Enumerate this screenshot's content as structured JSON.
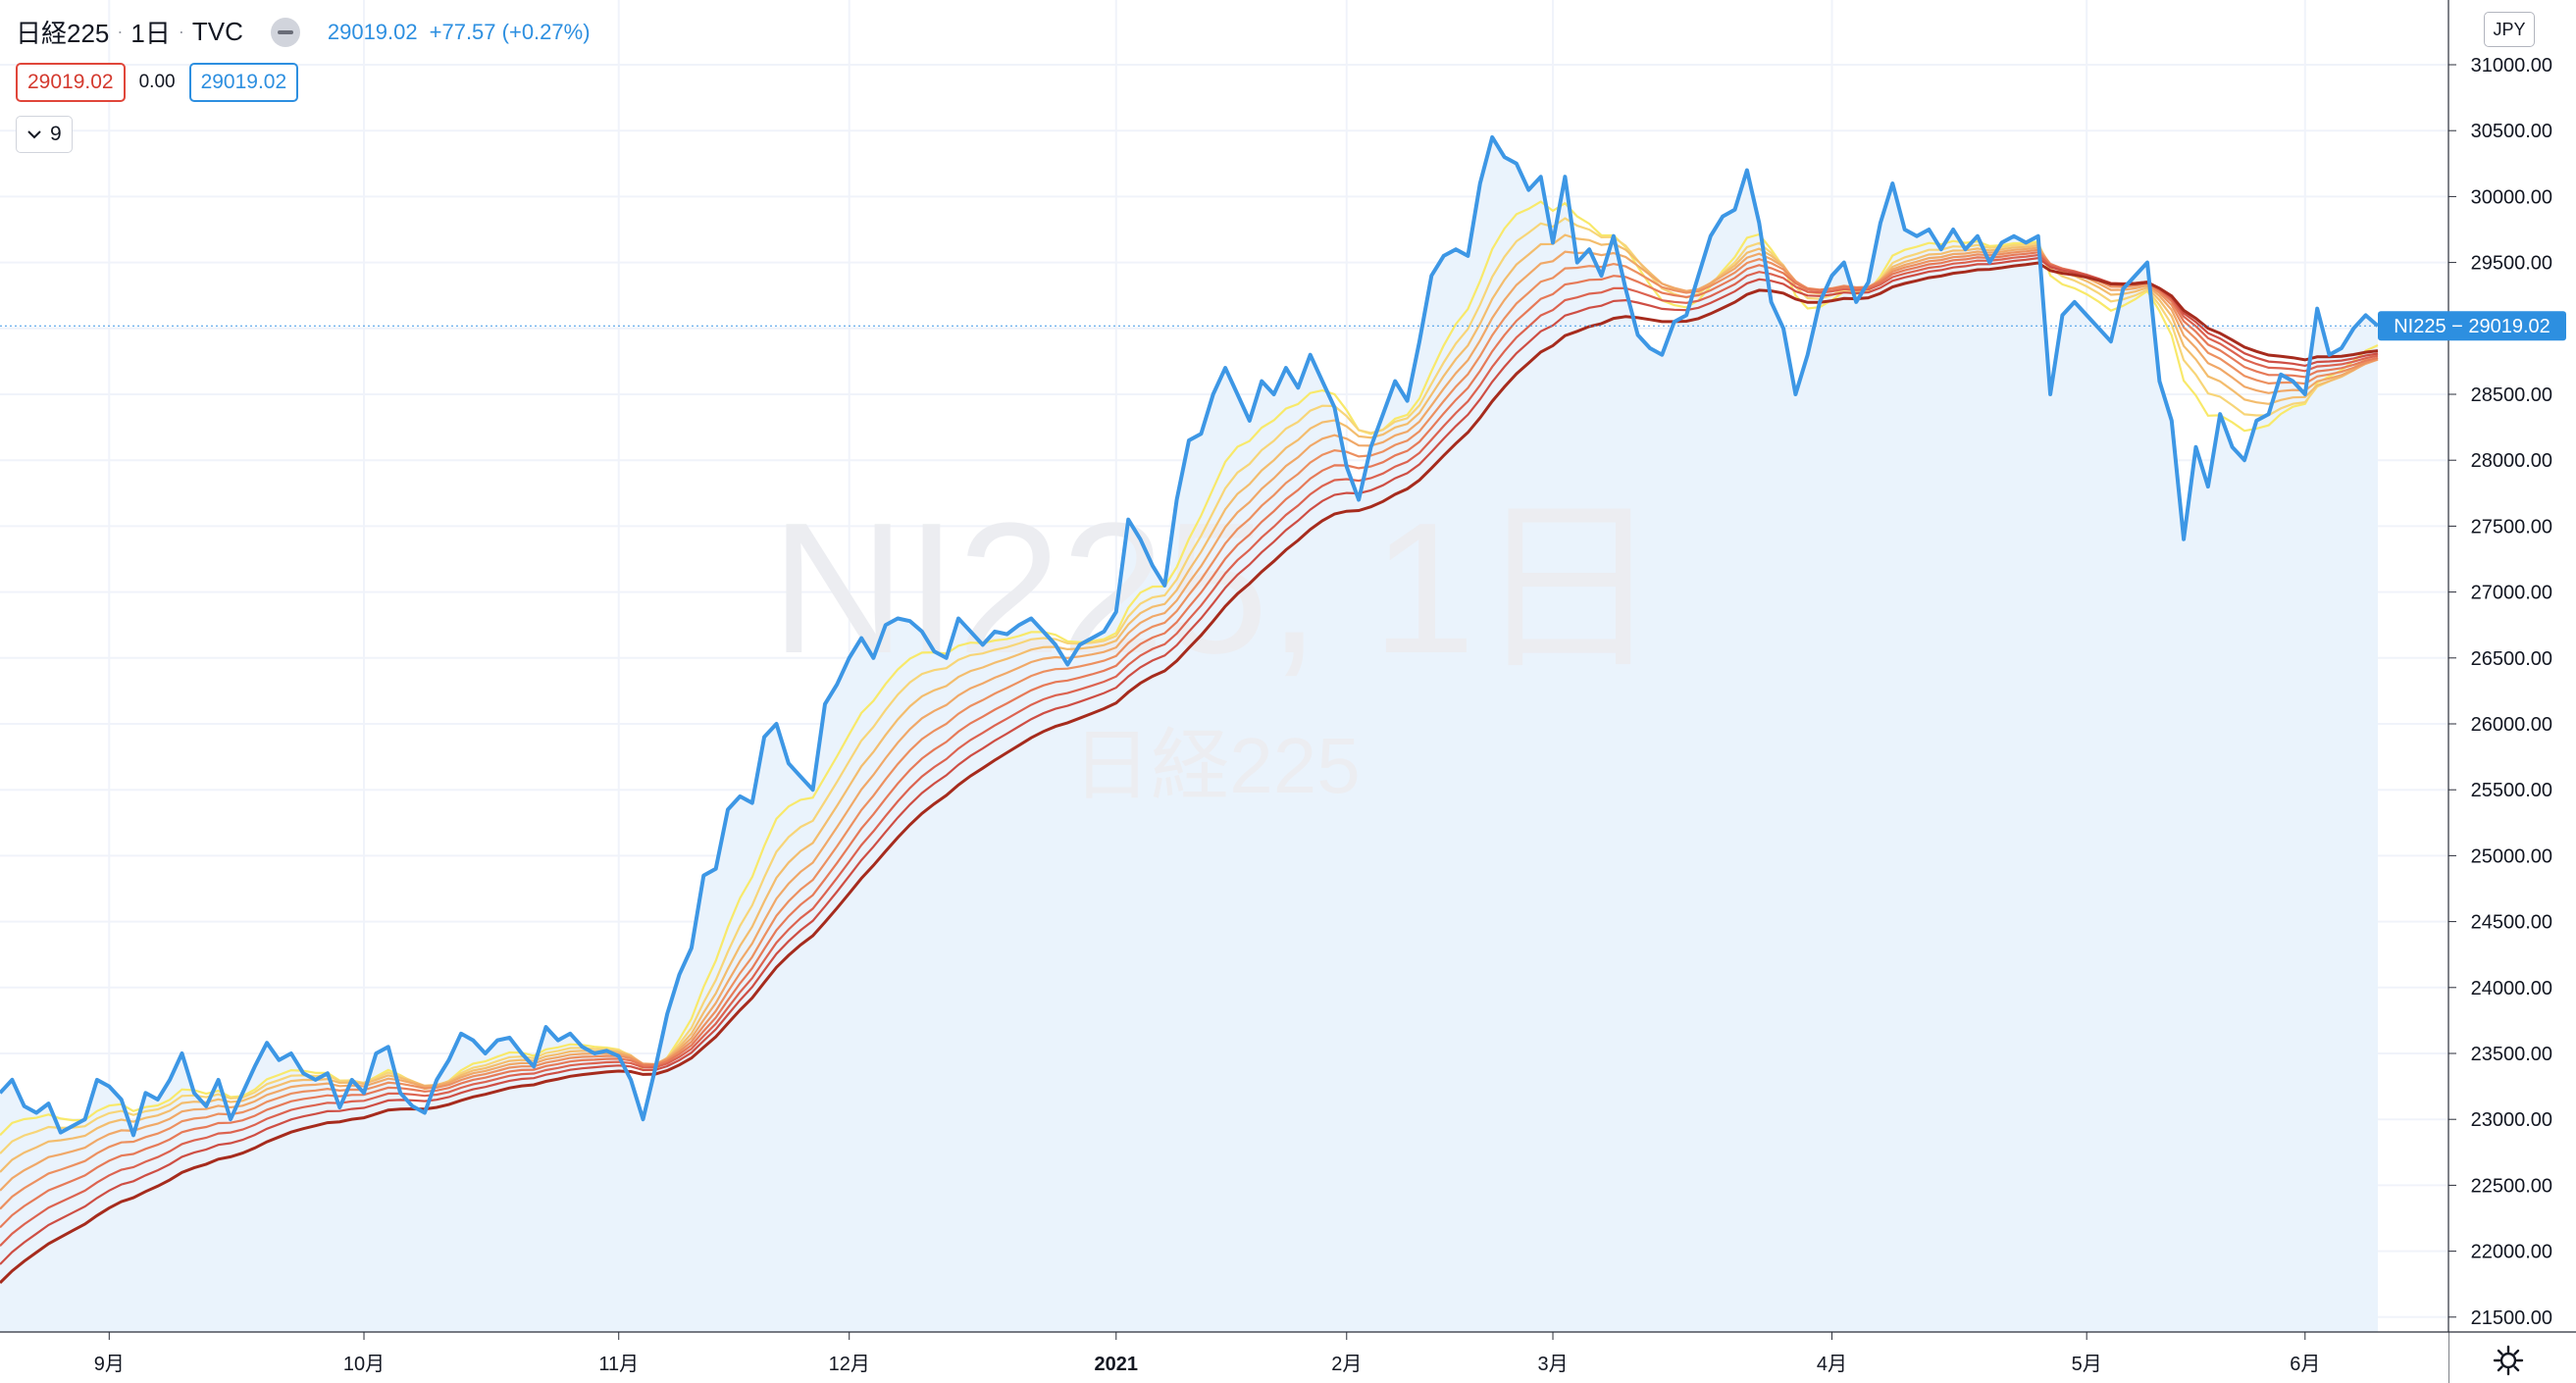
{
  "legend": {
    "symbol": "日経225",
    "interval": "1日",
    "exchange": "TVC",
    "last_price": "29019.02",
    "change": "+77.57 (+0.27%)",
    "ma_value_1": "29019.02",
    "ma_value_2": "0.00",
    "ma_value_3": "29019.02",
    "collapsed_count": "9"
  },
  "watermark": {
    "line1": "NI225, 1日",
    "line2": "日経225"
  },
  "price_axis": {
    "currency": "JPY",
    "ticks": [
      "31000.00",
      "30500.00",
      "30000.00",
      "29500.00",
      "29000.00",
      "28500.00",
      "28000.00",
      "27500.00",
      "27000.00",
      "26500.00",
      "26000.00",
      "25500.00",
      "25000.00",
      "24500.00",
      "24000.00",
      "23500.00",
      "23000.00",
      "22500.00",
      "22000.00",
      "21500.00"
    ],
    "last_label": "NI225 − 29019.02"
  },
  "time_axis": {
    "ticks": [
      {
        "label": "9月",
        "bar": 9
      },
      {
        "label": "10月",
        "bar": 30
      },
      {
        "label": "11月",
        "bar": 51
      },
      {
        "label": "12月",
        "bar": 70
      },
      {
        "label": "2021",
        "bar": 92
      },
      {
        "label": "2月",
        "bar": 111
      },
      {
        "label": "3月",
        "bar": 128
      },
      {
        "label": "4月",
        "bar": 151
      },
      {
        "label": "5月",
        "bar": 172
      },
      {
        "label": "6月",
        "bar": 190
      }
    ]
  },
  "colors": {
    "price_line": "#3d97e5",
    "area_fill": "#eaf3fc",
    "grid": "#f0f3fa",
    "ribbon": [
      "#f8e96a",
      "#f7d578",
      "#f3bd6e",
      "#f0a868",
      "#ec9060",
      "#e67a58",
      "#dc6350",
      "#ce4e44",
      "#a62b1d"
    ]
  },
  "chart_data": {
    "type": "line",
    "ylim": [
      21500,
      31000
    ],
    "x": "daily bars, 2020-08-17 to 2021-06-07 (approx.)",
    "series": [
      {
        "values": [
          23200,
          23300,
          23100,
          23050,
          23120,
          22900,
          22950,
          23000,
          23300,
          23250,
          23150,
          22880,
          23200,
          23150,
          23300,
          23500,
          23200,
          23100,
          23300,
          23000,
          23200,
          23400,
          23580,
          23450,
          23500,
          23350,
          23300,
          23350,
          23090,
          23300,
          23200,
          23500,
          23550,
          23200,
          23100,
          23050,
          23300,
          23450,
          23650,
          23600,
          23500,
          23600,
          23620,
          23500,
          23400,
          23700,
          23600,
          23650,
          23550,
          23500,
          23520,
          23480,
          23300,
          23000,
          23380,
          23800,
          24100,
          24300,
          24850,
          24900,
          25350,
          25450,
          25400,
          25900,
          26000,
          25700,
          25600,
          25500,
          26150,
          26300,
          26500,
          26650,
          26500,
          26750,
          26800,
          26780,
          26700,
          26550,
          26500,
          26800,
          26700,
          26600,
          26700,
          26680,
          26750,
          26800,
          26700,
          26600,
          26450,
          26600,
          26650,
          26700,
          26850,
          27550,
          27400,
          27200,
          27050,
          27700,
          28150,
          28200,
          28500,
          28700,
          28500,
          28300,
          28600,
          28500,
          28700,
          28550,
          28800,
          28600,
          28400,
          27950,
          27700,
          28100,
          28350,
          28600,
          28450,
          28900,
          29400,
          29550,
          29600,
          29550,
          30100,
          30450,
          30300,
          30250,
          30050,
          30150,
          29650,
          30150,
          29500,
          29600,
          29400,
          29700,
          29300,
          28950,
          28850,
          28800,
          29050,
          29100,
          29400,
          29700,
          29850,
          29900,
          30200,
          29800,
          29200,
          29000,
          28500,
          28800,
          29200,
          29400,
          29500,
          29200,
          29350,
          29800,
          30100,
          29750,
          29700,
          29750,
          29600,
          29750,
          29600,
          29700,
          29500,
          29650,
          29700,
          29650,
          29700,
          28500,
          29100,
          29200,
          29100,
          29000,
          28900,
          29300,
          29400,
          29500,
          28600,
          28300,
          27400,
          28100,
          27800,
          28350,
          28100,
          28000,
          28300,
          28350,
          28650,
          28600,
          28500,
          29150,
          28800,
          28850,
          29000,
          29100,
          29019
        ]
      }
    ]
  }
}
